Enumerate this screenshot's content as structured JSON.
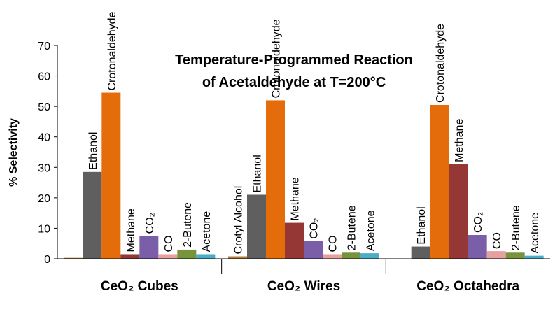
{
  "chart_data": {
    "type": "bar",
    "title": [
      "Temperature-Programmed Reaction",
      "of Acetaldehyde at T=200°C"
    ],
    "y_label": "% Selectivity",
    "categories": [
      "CeO₂ Cubes",
      "CeO₂ Wires",
      "CeO₂ Octahedra"
    ],
    "ylim": [
      0,
      70
    ],
    "yticks": [
      0,
      10,
      20,
      30,
      40,
      50,
      60,
      70
    ],
    "series": [
      {
        "color": "#b07a3a",
        "values": [
          0.3,
          0.8,
          0
        ],
        "value_labels": [
          null,
          "Crotyl Alcohol",
          null
        ]
      },
      {
        "color": "#5f5f5f",
        "values": [
          28.5,
          21,
          4
        ],
        "value_labels": [
          "Ethanol",
          "Ethanol",
          "Ethanol"
        ]
      },
      {
        "color": "#e46c0a",
        "values": [
          54.5,
          52,
          50.5
        ],
        "value_labels": [
          "Crotonaldehyde",
          "Crotonaldehyde",
          "Crotonaldehyde"
        ]
      },
      {
        "color": "#953735",
        "values": [
          1.5,
          11.8,
          31
        ],
        "value_labels": [
          "Methane",
          "Methane",
          "Methane"
        ]
      },
      {
        "color": "#7a5ea8",
        "values": [
          7.5,
          5.8,
          7.8
        ],
        "value_labels": [
          "CO₂",
          "CO₂",
          "CO₂"
        ]
      },
      {
        "color": "#e6a0a0",
        "values": [
          1.5,
          1.5,
          2.5
        ],
        "value_labels": [
          "CO",
          "CO",
          "CO"
        ]
      },
      {
        "color": "#77933c",
        "values": [
          3,
          2,
          2
        ],
        "value_labels": [
          "2-Butene",
          "2-Butene",
          "2-Butene"
        ]
      },
      {
        "color": "#4bacc6",
        "values": [
          1.5,
          1.8,
          1
        ],
        "value_labels": [
          "Acetone",
          "Acetone",
          "Acetone"
        ]
      }
    ]
  }
}
